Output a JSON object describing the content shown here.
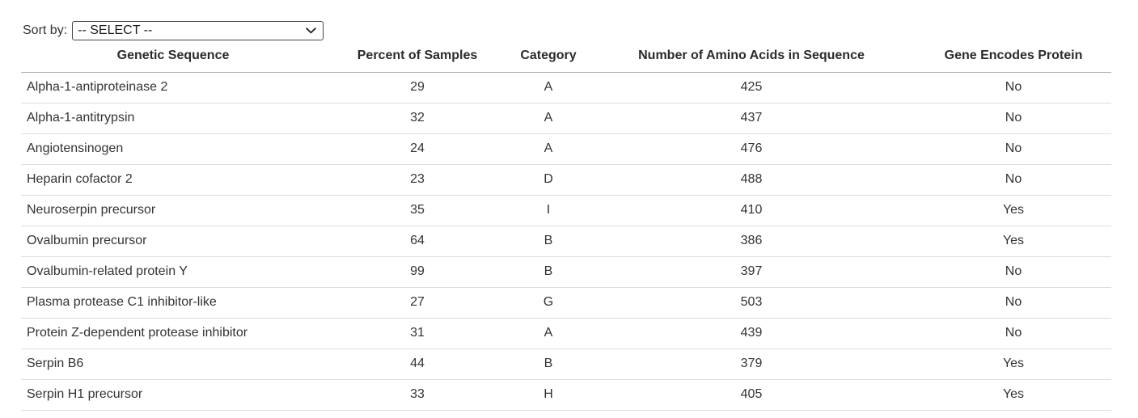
{
  "sort_control": {
    "label": "Sort by:",
    "selected_option": "-- SELECT --"
  },
  "table": {
    "columns": [
      {
        "key": "genetic-sequence",
        "label": "Genetic Sequence",
        "align": "left"
      },
      {
        "key": "percent-of-samples",
        "label": "Percent of Samples",
        "align": "center"
      },
      {
        "key": "category",
        "label": "Category",
        "align": "center"
      },
      {
        "key": "number-of-amino-acids",
        "label": "Number of Amino Acids in Sequence",
        "align": "center"
      },
      {
        "key": "gene-encodes-protein",
        "label": "Gene Encodes Protein",
        "align": "center"
      }
    ],
    "rows": [
      [
        "Alpha-1-antiproteinase 2",
        "29",
        "A",
        "425",
        "No"
      ],
      [
        "Alpha-1-antitrypsin",
        "32",
        "A",
        "437",
        "No"
      ],
      [
        "Angiotensinogen",
        "24",
        "A",
        "476",
        "No"
      ],
      [
        "Heparin cofactor 2",
        "23",
        "D",
        "488",
        "No"
      ],
      [
        "Neuroserpin precursor",
        "35",
        "I",
        "410",
        "Yes"
      ],
      [
        "Ovalbumin precursor",
        "64",
        "B",
        "386",
        "Yes"
      ],
      [
        "Ovalbumin-related protein Y",
        "99",
        "B",
        "397",
        "No"
      ],
      [
        "Plasma protease C1 inhibitor-like",
        "27",
        "G",
        "503",
        "No"
      ],
      [
        "Protein Z-dependent protease inhibitor",
        "31",
        "A",
        "439",
        "No"
      ],
      [
        "Serpin B6",
        "44",
        "B",
        "379",
        "Yes"
      ],
      [
        "Serpin H1 precursor",
        "33",
        "H",
        "405",
        "Yes"
      ]
    ]
  },
  "colors": {
    "text": "#333333",
    "header_border": "#b0b0b0",
    "row_border": "#dddddd",
    "select_border": "#444444",
    "background": "#ffffff"
  }
}
